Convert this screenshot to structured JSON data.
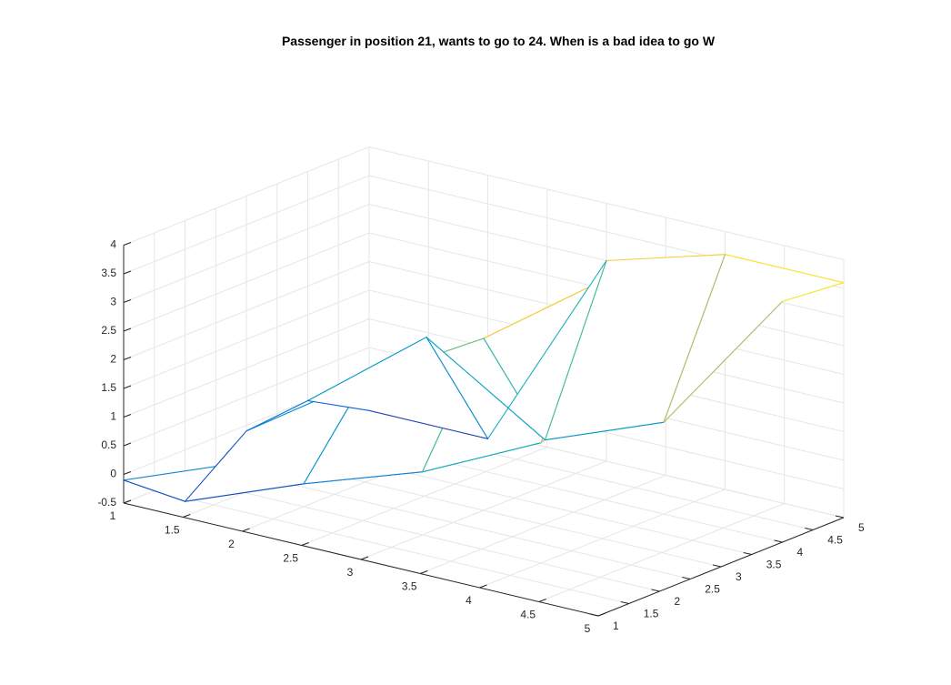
{
  "chart_data": {
    "type": "surface",
    "title": "Passenger in position 21, wants to go to 24. When is a bad idea to go W",
    "xlabel": "",
    "ylabel": "",
    "zlabel": "",
    "x": [
      1,
      2,
      3,
      4,
      5
    ],
    "y": [
      1,
      2,
      3,
      4,
      5
    ],
    "z": [
      [
        -0.1,
        0.7,
        1.5,
        2.3,
        3.2
      ],
      [
        -0.9,
        -0.1,
        0.6,
        1.6,
        3.8
      ],
      [
        -0.1,
        1.3,
        2.5,
        4.0,
        4.0
      ],
      [
        0.0,
        1.6,
        0.3,
        1.1,
        3.7
      ],
      [
        -0.6,
        -0.6,
        3.0,
        3.6,
        3.6
      ]
    ],
    "xlim": [
      1,
      5
    ],
    "ylim": [
      1,
      5
    ],
    "zlim": [
      -0.5,
      4
    ],
    "x_ticks": [
      "1",
      "1.5",
      "2",
      "2.5",
      "3",
      "3.5",
      "4",
      "4.5",
      "5"
    ],
    "y_ticks": [
      "1",
      "1.5",
      "2",
      "2.5",
      "3",
      "3.5",
      "4",
      "4.5",
      "5"
    ],
    "z_ticks": [
      "-0.5",
      "0",
      "0.5",
      "1",
      "1.5",
      "2",
      "2.5",
      "3",
      "3.5",
      "4"
    ],
    "grid": true,
    "colormap": "parula",
    "face_color": "#ffffff"
  }
}
